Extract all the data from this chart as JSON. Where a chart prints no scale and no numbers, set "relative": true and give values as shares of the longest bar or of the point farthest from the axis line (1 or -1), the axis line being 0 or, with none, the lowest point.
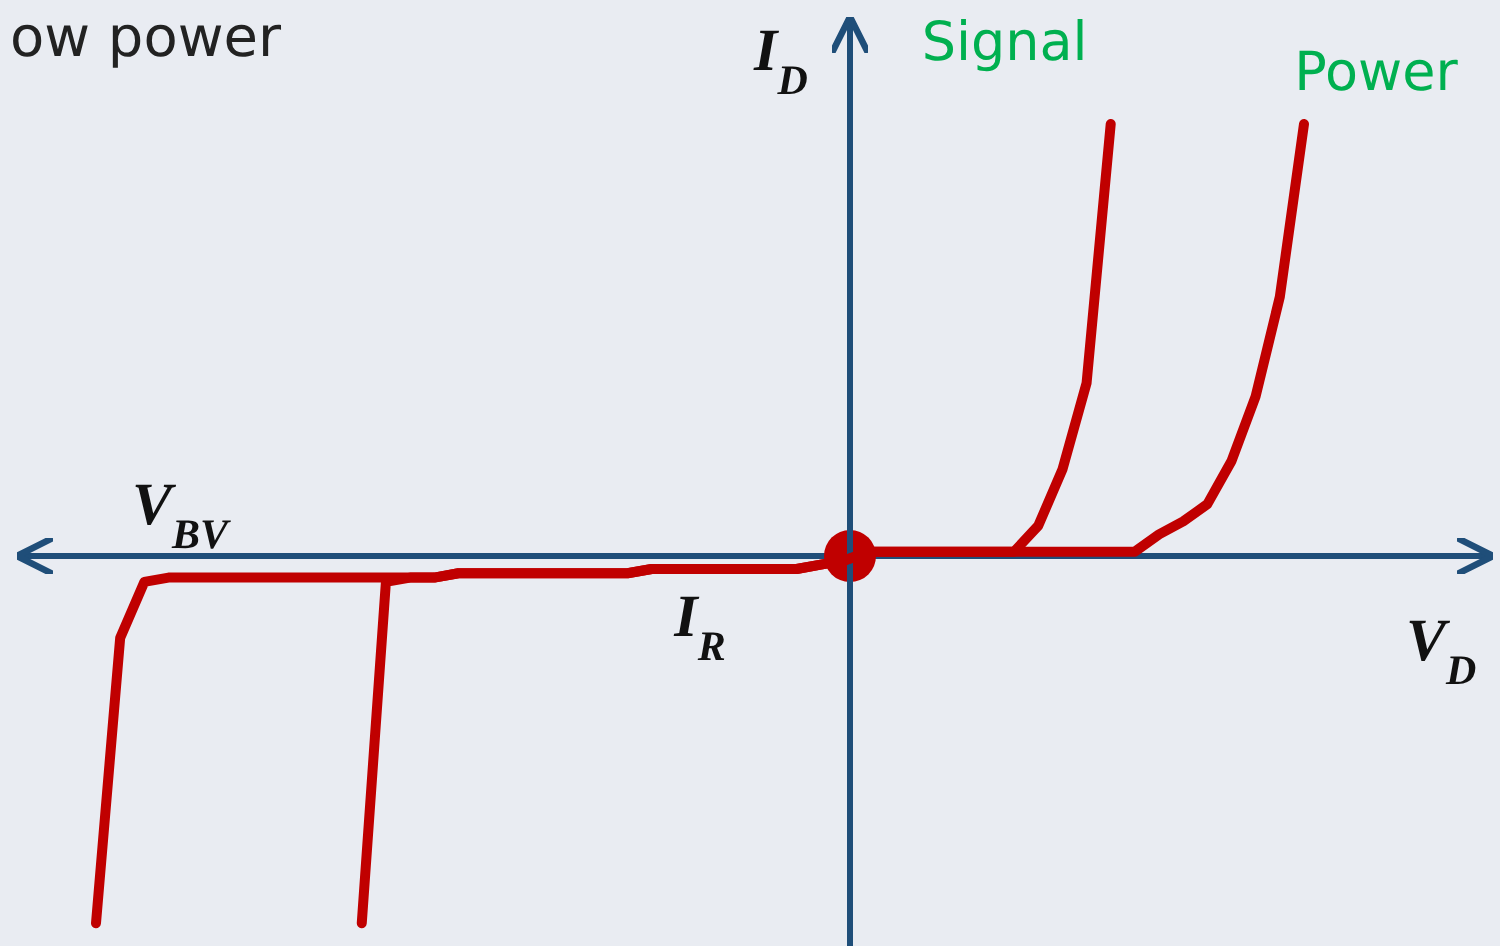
{
  "chart_data": {
    "type": "line",
    "title": "ow power",
    "xlabel": "V$_{D}$",
    "ylabel": "I$_{D}$",
    "relative": true,
    "annotations": [
      "V$_{BV}$",
      "I$_{R}$"
    ],
    "ref_lines": [
      {
        "axis": "y",
        "value": 0,
        "color": "#1f4e79"
      }
    ],
    "categories": [
      null,
      null,
      null,
      null,
      null,
      null,
      null,
      null,
      null,
      null,
      null,
      null,
      null,
      null,
      null,
      null,
      null,
      null,
      null,
      null,
      null,
      null,
      null,
      null,
      null,
      null,
      null,
      null,
      null,
      null,
      null,
      null,
      null,
      null,
      null,
      null,
      null,
      null,
      null,
      null,
      null,
      null,
      null,
      null,
      null,
      null,
      null,
      null,
      null,
      null,
      null
    ],
    "series": [
      {
        "name": "Signal",
        "color": "#c00000",
        "values": [
          null,
          null,
          null,
          null,
          null,
          null,
          null,
          null,
          null,
          null,
          null,
          -0.85,
          -0.06,
          -0.05,
          -0.05,
          -0.04,
          -0.04,
          -0.04,
          -0.04,
          -0.04,
          -0.04,
          -0.04,
          -0.04,
          -0.03,
          -0.03,
          -0.03,
          -0.03,
          -0.03,
          -0.03,
          -0.03,
          -0.02,
          -0.01,
          0.01,
          0.01,
          0.01,
          0.01,
          0.01,
          0.01,
          0.01,
          0.07,
          0.2,
          0.4,
          1,
          null,
          null,
          null,
          null,
          null,
          null,
          null,
          null
        ]
      },
      {
        "name": "Power",
        "color": "#c00000",
        "values": [
          -0.85,
          -0.19,
          -0.06,
          -0.05,
          -0.05,
          -0.05,
          -0.05,
          -0.05,
          -0.05,
          -0.05,
          -0.05,
          -0.05,
          -0.05,
          -0.05,
          -0.05,
          -0.04,
          -0.04,
          -0.04,
          -0.04,
          -0.04,
          -0.04,
          -0.04,
          -0.04,
          -0.03,
          -0.03,
          -0.03,
          -0.03,
          -0.03,
          -0.03,
          -0.03,
          -0.02,
          -0.01,
          0.01,
          0.01,
          0.01,
          0.01,
          0.01,
          0.01,
          0.01,
          0.01,
          0.01,
          0.01,
          0.01,
          0.01,
          0.05,
          0.08,
          0.12,
          0.22,
          0.37,
          0.6,
          1
        ]
      }
    ]
  }
}
